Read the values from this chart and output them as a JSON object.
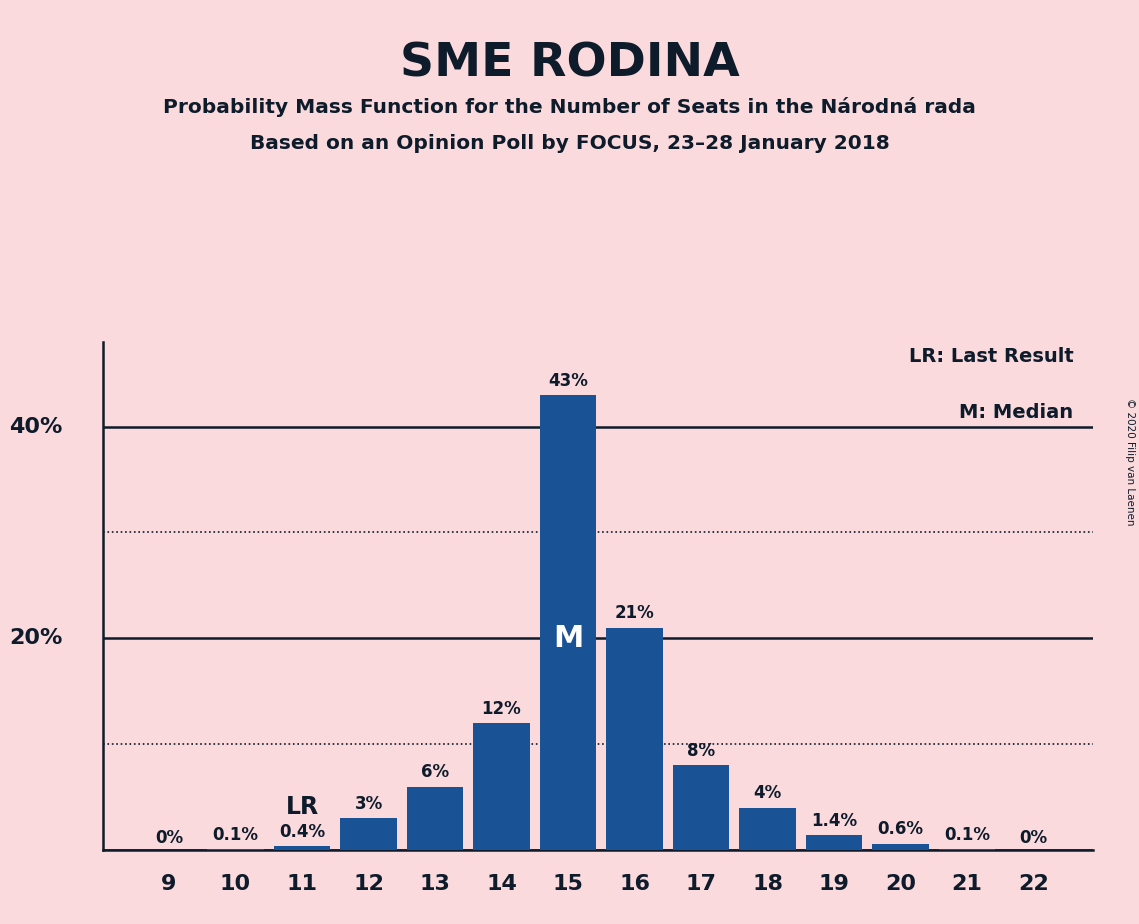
{
  "title": "SME RODINA",
  "subtitle1": "Probability Mass Function for the Number of Seats in the Národná rada",
  "subtitle2": "Based on an Opinion Poll by FOCUS, 23–28 January 2018",
  "copyright": "© 2020 Filip van Laenen",
  "seats": [
    9,
    10,
    11,
    12,
    13,
    14,
    15,
    16,
    17,
    18,
    19,
    20,
    21,
    22
  ],
  "probabilities": [
    0.0,
    0.1,
    0.4,
    3.0,
    6.0,
    12.0,
    43.0,
    21.0,
    8.0,
    4.0,
    1.4,
    0.6,
    0.1,
    0.0
  ],
  "labels": [
    "0%",
    "0.1%",
    "0.4%",
    "3%",
    "6%",
    "12%",
    "43%",
    "21%",
    "8%",
    "4%",
    "1.4%",
    "0.6%",
    "0.1%",
    "0%"
  ],
  "bar_color": "#1a5296",
  "background_color": "#fadadd",
  "text_color": "#0d1b2a",
  "median_seat": 15,
  "lr_seat": 11,
  "legend_lr": "LR: Last Result",
  "legend_m": "M: Median",
  "solid_yticks": [
    0,
    20,
    40
  ],
  "dotted_yticks": [
    10,
    30
  ],
  "ylim": [
    0,
    48
  ],
  "ylabel_values": [
    20,
    40
  ],
  "ylabel_labels": [
    "20%",
    "40%"
  ]
}
